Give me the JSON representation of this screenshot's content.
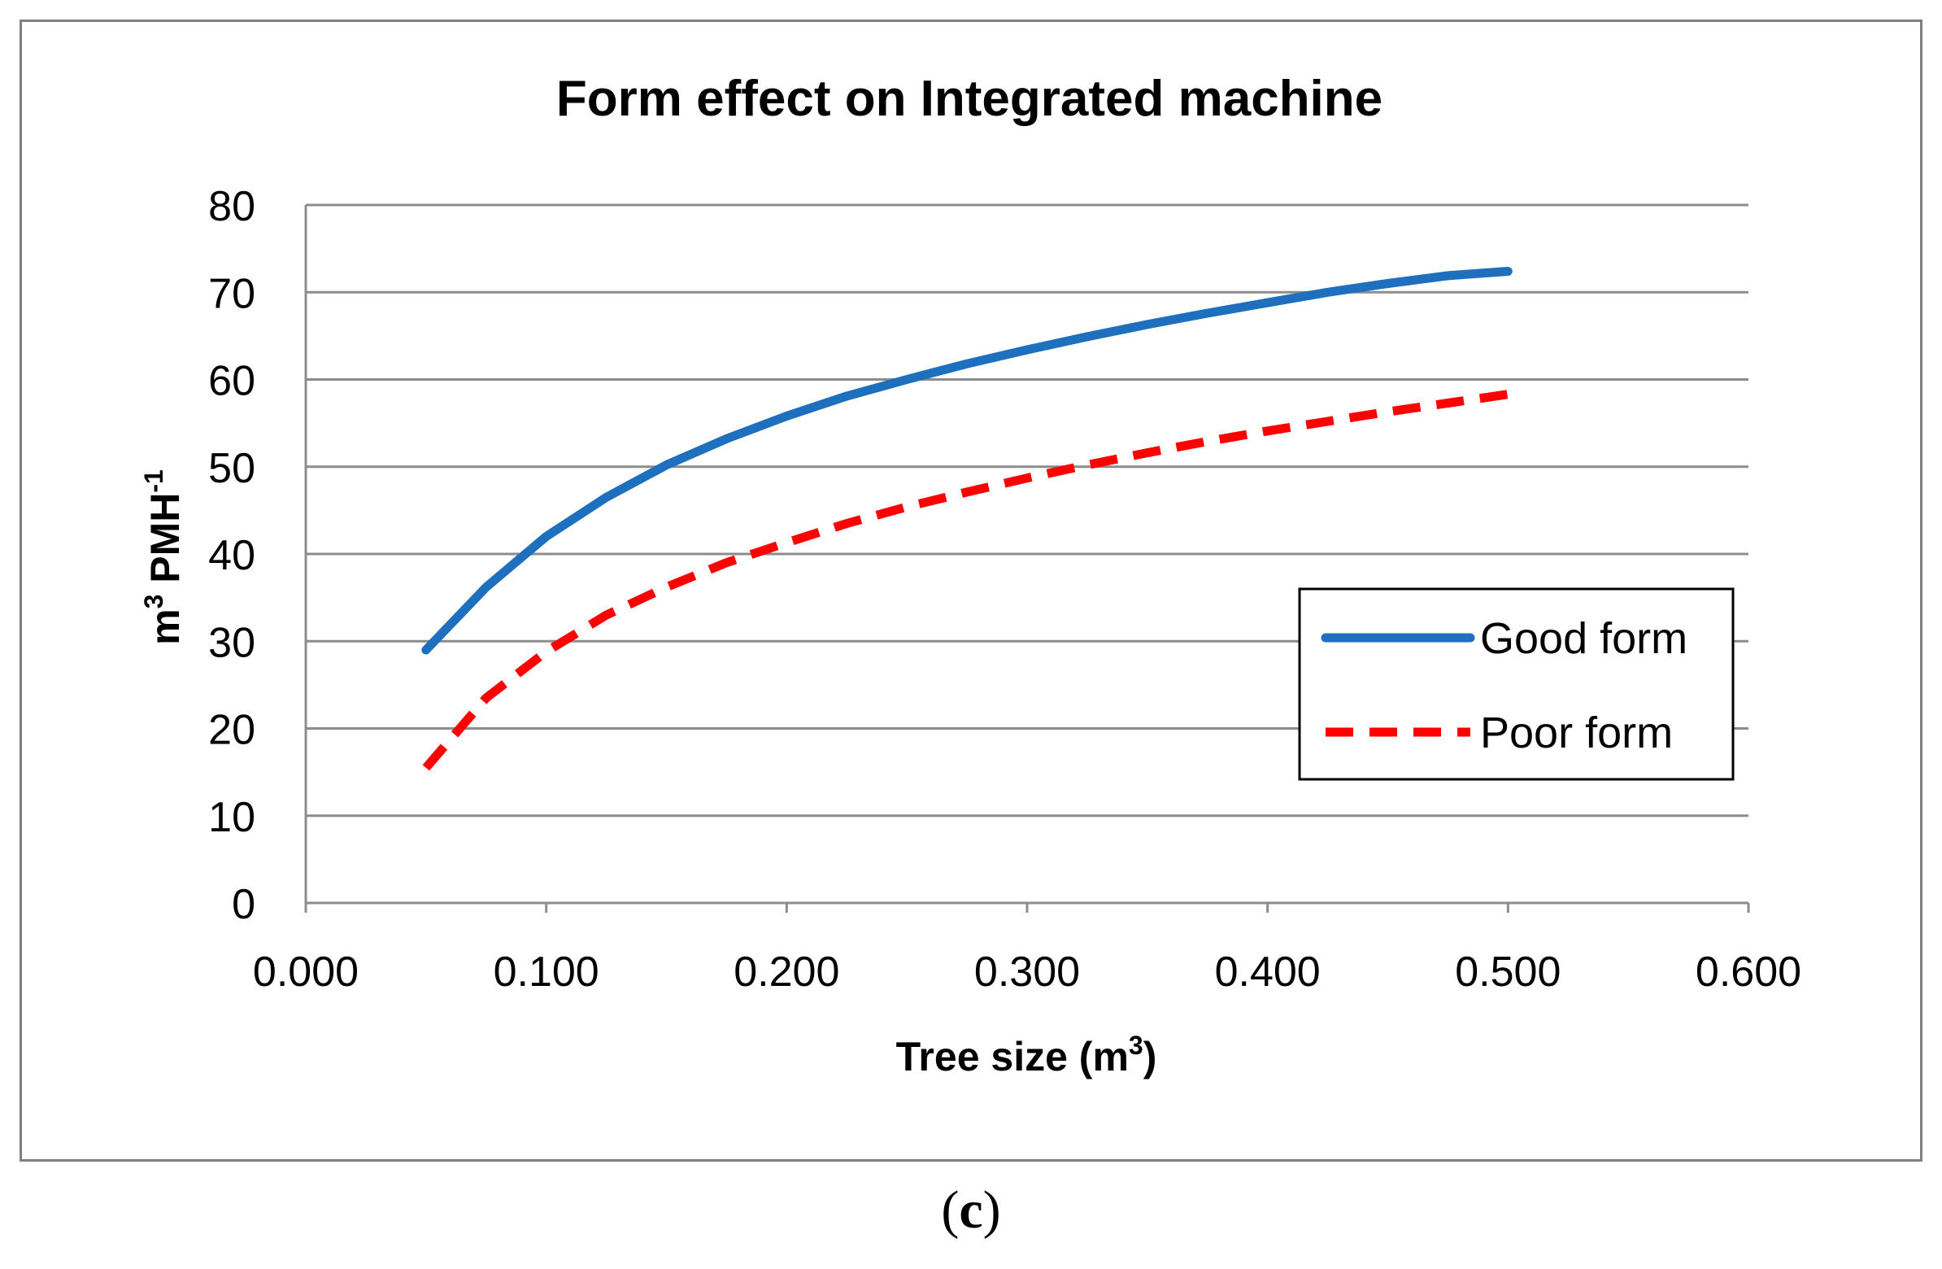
{
  "chart_data": {
    "type": "line",
    "title": "Form effect on Integrated machine",
    "xlabel": "Tree size (m",
    "xlabel_sup": "3",
    "xlabel_tail": ")",
    "ylabel_unit": "m",
    "ylabel_sup": "3",
    "ylabel_mid": " PMH",
    "ylabel_sup2": "-1",
    "xlim": [
      0,
      0.6
    ],
    "ylim": [
      0,
      80
    ],
    "x_ticks": [
      "0.000",
      "0.100",
      "0.200",
      "0.300",
      "0.400",
      "0.500",
      "0.600"
    ],
    "y_ticks": [
      "0",
      "10",
      "20",
      "30",
      "40",
      "50",
      "60",
      "70",
      "80"
    ],
    "grid": true,
    "legend_position": "right",
    "series": [
      {
        "name": "Good form",
        "color": "#1F6FBF",
        "dash": "solid",
        "x": [
          0.05,
          0.075,
          0.1,
          0.125,
          0.15,
          0.175,
          0.2,
          0.225,
          0.25,
          0.275,
          0.3,
          0.325,
          0.35,
          0.375,
          0.4,
          0.425,
          0.45,
          0.475,
          0.5
        ],
        "y": [
          29,
          36.2,
          42.0,
          46.5,
          50.2,
          53.2,
          55.8,
          58.1,
          60.0,
          61.8,
          63.4,
          64.9,
          66.3,
          67.6,
          68.8,
          70.0,
          71.0,
          71.9,
          72.4
        ]
      },
      {
        "name": "Poor form",
        "color": "#FF0000",
        "dash": "dashed",
        "x": [
          0.05,
          0.075,
          0.1,
          0.125,
          0.15,
          0.175,
          0.2,
          0.225,
          0.25,
          0.275,
          0.3,
          0.325,
          0.35,
          0.375,
          0.4,
          0.425,
          0.45,
          0.475,
          0.5
        ],
        "y": [
          15.5,
          23.5,
          28.8,
          33.0,
          36.2,
          39.0,
          41.3,
          43.5,
          45.4,
          47.1,
          48.7,
          50.2,
          51.6,
          52.9,
          54.1,
          55.2,
          56.3,
          57.3,
          58.3
        ]
      }
    ]
  },
  "caption": {
    "open": "(",
    "label": "c",
    "close": ")"
  }
}
